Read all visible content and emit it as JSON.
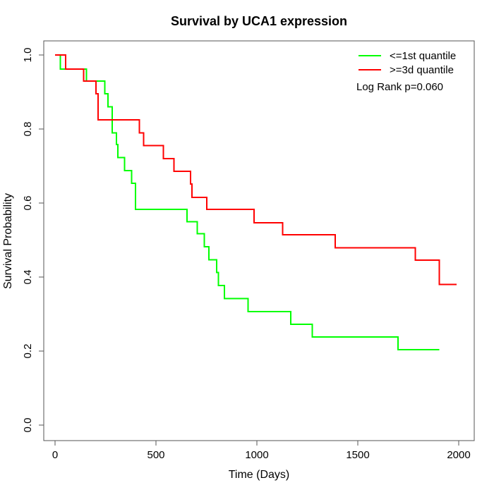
{
  "chart_data": {
    "type": "line",
    "subtype": "kaplan-meier-step",
    "title": "Survival by UCA1 expression",
    "xlabel": "Time (Days)",
    "ylabel": "Survival Probability",
    "xlim": [
      0,
      2000
    ],
    "ylim": [
      0.0,
      1.0
    ],
    "x_ticks": [
      0,
      500,
      1000,
      1500,
      2000
    ],
    "x_tick_labels": [
      "0",
      "500",
      "1000",
      "1500",
      "2000"
    ],
    "y_ticks": [
      0.0,
      0.2,
      0.4,
      0.6,
      0.8,
      1.0
    ],
    "y_tick_labels": [
      "0.0",
      "0.2",
      "0.4",
      "0.6",
      "0.8",
      "1.0"
    ],
    "grid": false,
    "legend_position": "top-right",
    "annotation": "Log Rank p=0.060",
    "series": [
      {
        "name": "<=1st quantile",
        "color": "#00ff00",
        "start": {
          "t": 0,
          "s": 1.0
        },
        "steps": [
          [
            27,
            0.962
          ],
          [
            156,
            0.93
          ],
          [
            246,
            0.895
          ],
          [
            263,
            0.86
          ],
          [
            284,
            0.79
          ],
          [
            304,
            0.758
          ],
          [
            312,
            0.723
          ],
          [
            345,
            0.688
          ],
          [
            380,
            0.653
          ],
          [
            398,
            0.583
          ],
          [
            654,
            0.55
          ],
          [
            704,
            0.517
          ],
          [
            739,
            0.482
          ],
          [
            762,
            0.447
          ],
          [
            800,
            0.412
          ],
          [
            809,
            0.377
          ],
          [
            840,
            0.342
          ],
          [
            957,
            0.307
          ],
          [
            1167,
            0.272
          ],
          [
            1275,
            0.238
          ],
          [
            1699,
            0.204
          ]
        ],
        "end_t": 1904,
        "end_s": 0.204
      },
      {
        "name": ">=3d quantile",
        "color": "#ff0000",
        "start": {
          "t": 0,
          "s": 1.0
        },
        "steps": [
          [
            53,
            0.962
          ],
          [
            141,
            0.93
          ],
          [
            203,
            0.895
          ],
          [
            214,
            0.825
          ],
          [
            417,
            0.79
          ],
          [
            438,
            0.755
          ],
          [
            537,
            0.72
          ],
          [
            590,
            0.686
          ],
          [
            671,
            0.651
          ],
          [
            678,
            0.615
          ],
          [
            751,
            0.583
          ],
          [
            986,
            0.547
          ],
          [
            1128,
            0.514
          ],
          [
            1388,
            0.479
          ],
          [
            1785,
            0.446
          ],
          [
            1904,
            0.38
          ]
        ],
        "end_t": 1989,
        "end_s": 0.38
      }
    ],
    "colors": {
      "axis": "#555555",
      "text": "#000000"
    }
  }
}
